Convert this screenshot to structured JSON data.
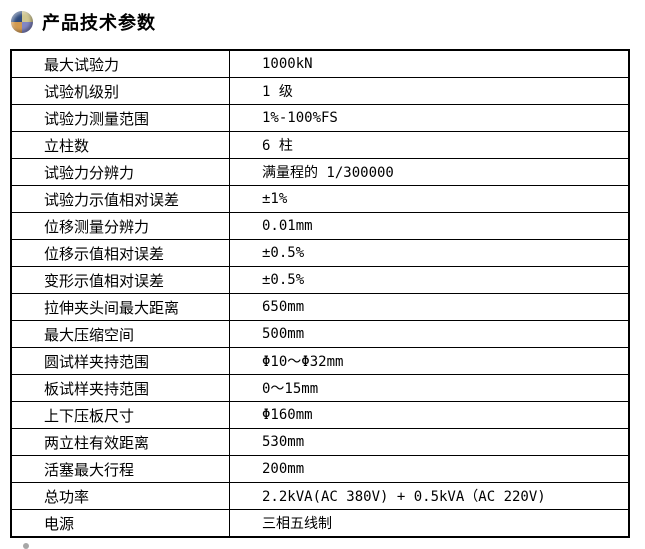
{
  "header": {
    "title": "产品技术参数",
    "icon": "sphere-bullet-icon",
    "icon_colors": {
      "top_left": "#2e4a7c",
      "top_right": "#cfc68f",
      "bottom_left": "#d2994f",
      "bottom_right": "#8387c4"
    }
  },
  "table": {
    "border_color": "#000000",
    "rows": [
      {
        "label": "最大试验力",
        "value": "1000kN"
      },
      {
        "label": "试验机级别",
        "value": "1 级"
      },
      {
        "label": "试验力测量范围",
        "value": "1%-100%FS"
      },
      {
        "label": "立柱数",
        "value": "6 柱"
      },
      {
        "label": "试验力分辨力",
        "value": "满量程的 1/300000"
      },
      {
        "label": "试验力示值相对误差",
        "value": "±1%"
      },
      {
        "label": "位移测量分辨力",
        "value": "0.01mm"
      },
      {
        "label": "位移示值相对误差",
        "value": "±0.5%"
      },
      {
        "label": "变形示值相对误差",
        "value": "±0.5%"
      },
      {
        "label": "拉伸夹头间最大距离",
        "value": "650mm"
      },
      {
        "label": "最大压缩空间",
        "value": "500mm"
      },
      {
        "label": "圆试样夹持范围",
        "value": "Φ10～Φ32mm"
      },
      {
        "label": "板试样夹持范围",
        "value": "0～15mm"
      },
      {
        "label": "上下压板尺寸",
        "value": "Φ160mm"
      },
      {
        "label": "两立柱有效距离",
        "value": "530mm"
      },
      {
        "label": "活塞最大行程",
        "value": "200mm"
      },
      {
        "label": "总功率",
        "value": "2.2kVA(AC 380V) + 0.5kVA（AC 220V)"
      },
      {
        "label": "电源",
        "value": "三相五线制"
      }
    ]
  }
}
